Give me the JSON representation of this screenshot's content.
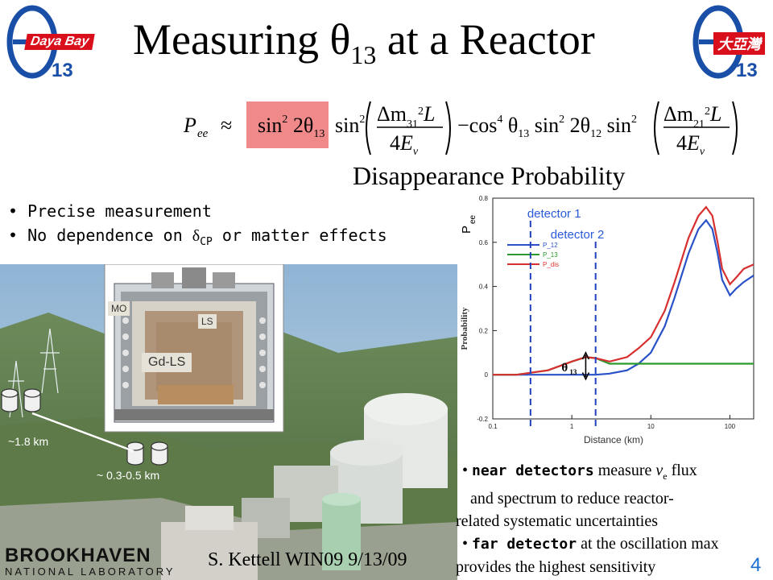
{
  "title": {
    "main": "Measuring θ",
    "sub": "13",
    "tail": " at a Reactor"
  },
  "logos": {
    "left": {
      "badge": "Daya Bay",
      "theta": "θ",
      "num": "13"
    },
    "right": {
      "badge": "大亞灣",
      "theta": "θ",
      "num": "13"
    }
  },
  "formula": {
    "lhs": "P",
    "lhs_sub": "ee",
    "approx": "≈",
    "highlight": "sin²2θ₁₃",
    "rest": "sin²(Δm²₃₁L / 4E_ν) − cos⁴θ₁₃ sin²2θ₁₂ sin²(Δm²₂₁L / 4E_ν)",
    "highlight_color": "#f08a8a"
  },
  "subtitle": "Disappearance Probability",
  "bullets": [
    {
      "text": "Precise measurement"
    },
    {
      "pre": "No dependence on ",
      "sym": "δ",
      "symsub": "CP",
      "post": " or matter effects"
    }
  ],
  "photo": {
    "labels": {
      "mo": "MO",
      "ls": "LS",
      "gdls": "Gd-LS",
      "dist_far": "~1.8 km",
      "dist_near": "~ 0.3-0.5 km"
    }
  },
  "chart_data": {
    "type": "line",
    "ylabel_top": "P",
    "ylabel_top_sub": "ee",
    "ylabel": "Probability",
    "xlabel": "Distance (km)",
    "xscale": "log",
    "xlim": [
      0.1,
      200
    ],
    "ylim": [
      -0.2,
      0.8
    ],
    "xticks": [
      "0.1",
      "1",
      "10",
      "100"
    ],
    "yticks": [
      "-0.2",
      "0",
      "0.2",
      "0.4",
      "0.6",
      "0.8"
    ],
    "legend": [
      "P_12",
      "P_13",
      "P_dis"
    ],
    "annotations": {
      "detector1": "detector 1",
      "detector2": "detector 2",
      "theta": "θ",
      "theta_sub": "13"
    },
    "detector1_x": 0.3,
    "detector2_x": 2.0,
    "series": [
      {
        "name": "P_12",
        "color": "#2a52c8",
        "x": [
          0.1,
          0.2,
          0.5,
          1,
          1.5,
          2,
          3,
          5,
          7,
          10,
          15,
          20,
          30,
          40,
          50,
          60,
          70,
          80,
          100,
          120,
          150,
          200
        ],
        "y": [
          0,
          0,
          0,
          0,
          0,
          0,
          0.005,
          0.02,
          0.05,
          0.1,
          0.22,
          0.35,
          0.55,
          0.66,
          0.7,
          0.66,
          0.55,
          0.43,
          0.36,
          0.39,
          0.42,
          0.45
        ]
      },
      {
        "name": "P_13",
        "color": "#2a9a2a",
        "x": [
          0.1,
          0.2,
          0.5,
          1,
          1.5,
          2,
          3,
          5,
          10,
          20,
          50,
          100,
          200
        ],
        "y": [
          0,
          0,
          0.02,
          0.06,
          0.08,
          0.075,
          0.05,
          0.05,
          0.05,
          0.05,
          0.05,
          0.05,
          0.05
        ]
      },
      {
        "name": "P_dis",
        "color": "#d83030",
        "x": [
          0.1,
          0.2,
          0.5,
          1,
          1.5,
          2,
          3,
          5,
          7,
          10,
          15,
          20,
          30,
          40,
          50,
          60,
          70,
          80,
          100,
          120,
          150,
          200
        ],
        "y": [
          0,
          0,
          0.02,
          0.06,
          0.08,
          0.075,
          0.06,
          0.08,
          0.12,
          0.17,
          0.29,
          0.42,
          0.62,
          0.72,
          0.76,
          0.72,
          0.6,
          0.48,
          0.41,
          0.44,
          0.48,
          0.5
        ]
      }
    ]
  },
  "notes": [
    {
      "strong": "near detectors",
      "pre": " measure ",
      "nu": "ν",
      "nusub": "e",
      "post": " flux"
    },
    {
      "text": "and spectrum to reduce reactor-"
    },
    {
      "text": "related systematic uncertainties"
    },
    {
      "strong": "far detector",
      "post": " at the oscillation max"
    },
    {
      "text": "provides the highest sensitivity"
    }
  ],
  "footer": {
    "org_top": "BROOKHAVEN",
    "org_bottom": "NATIONAL LABORATORY",
    "author": "S. Kettell WIN09 9/13/09",
    "page": "4",
    "page_color": "#1a6fd0"
  }
}
